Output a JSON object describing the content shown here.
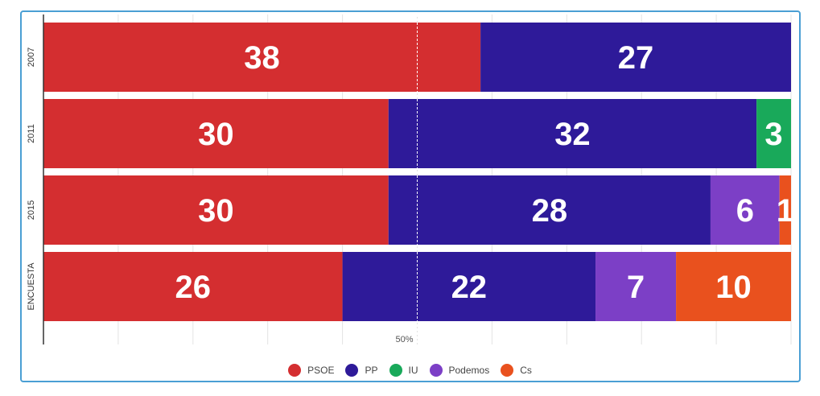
{
  "chart_data": {
    "type": "bar",
    "orientation": "horizontal-stacked",
    "categories": [
      "2007",
      "2011",
      "2015",
      "ENCUESTA"
    ],
    "series": [
      {
        "name": "PSOE",
        "color": "#d42e30",
        "values": [
          38,
          30,
          30,
          26
        ]
      },
      {
        "name": "PP",
        "color": "#2e1a99",
        "values": [
          27,
          32,
          28,
          22
        ]
      },
      {
        "name": "IU",
        "color": "#19a95a",
        "values": [
          0,
          3,
          0,
          0
        ]
      },
      {
        "name": "Podemos",
        "color": "#7c3fc6",
        "values": [
          0,
          0,
          6,
          7
        ]
      },
      {
        "name": "Cs",
        "color": "#e9511e",
        "values": [
          0,
          0,
          1,
          10
        ]
      }
    ],
    "total": 65,
    "reference_line": {
      "value": 50,
      "unit": "%",
      "label": "50%"
    },
    "legend_position": "bottom"
  }
}
